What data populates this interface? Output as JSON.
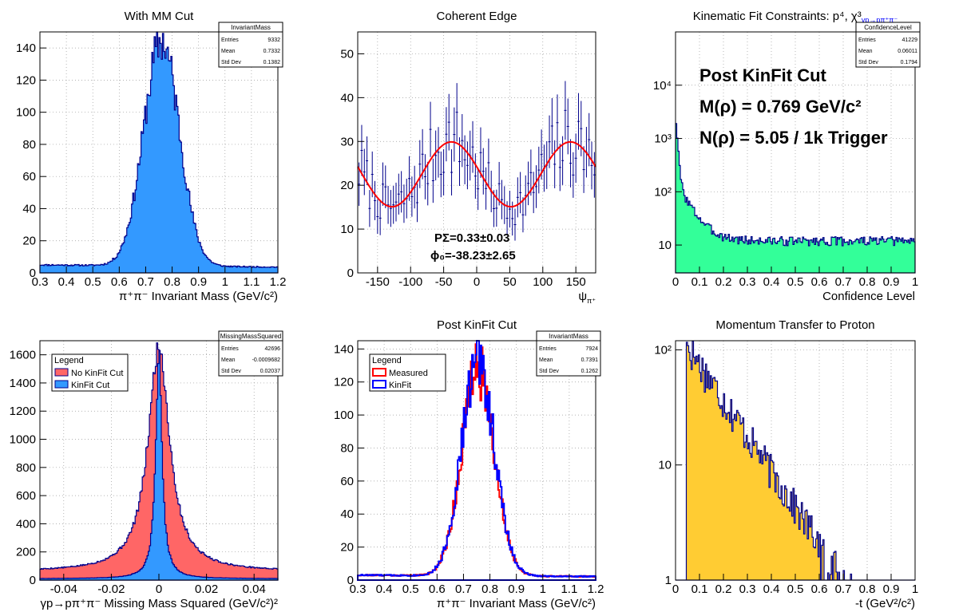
{
  "chart_data": [
    {
      "type": "bar",
      "title": "With MM Cut",
      "xlabel": "π⁺π⁻ Invariant Mass (GeV/c²)",
      "ylabel": "",
      "xlim": [
        0.3,
        1.2
      ],
      "ylim": [
        0,
        150
      ],
      "log_y": false,
      "grid": true,
      "xticks": [
        0.3,
        0.4,
        0.5,
        0.6,
        0.7,
        0.8,
        0.9,
        1,
        1.1,
        1.2
      ],
      "yticks": [
        0,
        20,
        40,
        60,
        80,
        100,
        120,
        140
      ],
      "fill_color": "#3399ff",
      "stats": {
        "name": "InvariantMass",
        "rows": [
          [
            "Entries",
            "9332"
          ],
          [
            "Mean",
            "0.7332"
          ],
          [
            "Std Dev",
            "0.1382"
          ]
        ]
      },
      "series": [
        {
          "kind": "gauss",
          "mu": 0.76,
          "sigma": 0.068,
          "amp": 140,
          "bg": 5,
          "bgSlope": 0,
          "noise": 0.1,
          "seed": 11
        }
      ]
    },
    {
      "type": "scatter",
      "title": "Coherent Edge",
      "xlabel": "ψ",
      "xlabel_sub": "π⁺",
      "ylabel": "",
      "xlim": [
        -180,
        180
      ],
      "ylim": [
        0,
        55
      ],
      "log_y": false,
      "grid": true,
      "xticks": [
        -150,
        -100,
        -50,
        0,
        50,
        100,
        150
      ],
      "yticks": [
        0,
        10,
        20,
        30,
        40,
        50
      ],
      "annotations": [
        "PΣ=0.33±0.03",
        "ϕ₀=-38.23±2.65"
      ],
      "series": [
        {
          "kind": "cos",
          "mean": 22.5,
          "amp": 7.4,
          "phase": -38.23,
          "noise": 0.28,
          "seed": 7
        }
      ]
    },
    {
      "type": "bar",
      "title": "Kinematic Fit Constraints: p⁴, χ³",
      "title_sub": "γp→pπ⁺π⁻",
      "xlabel": "Confidence Level",
      "ylabel": "",
      "xlim": [
        0,
        1
      ],
      "ylim": [
        3,
        100000
      ],
      "log_y": true,
      "grid": true,
      "xticks": [
        0,
        0.1,
        0.2,
        0.3,
        0.4,
        0.5,
        0.6,
        0.7,
        0.8,
        0.9,
        1
      ],
      "yticks": [
        10,
        100,
        1000,
        10000
      ],
      "ytick_labels": [
        "10",
        "10²",
        "10³",
        "10⁴"
      ],
      "fill_color": "#33ff99",
      "stats": {
        "name": "ConfidenceLevel",
        "rows": [
          [
            "Entries",
            "41229"
          ],
          [
            "Mean",
            "0.06011"
          ],
          [
            "Std Dev",
            "0.1794"
          ]
        ]
      },
      "annotations": [
        "Post KinFit Cut",
        "M(ρ) = 0.769 GeV/c²",
        "N(ρ) = 5.05 / 1k Trigger"
      ],
      "series": [
        {
          "kind": "conf",
          "noise": 0.2,
          "seed": 3
        }
      ]
    },
    {
      "type": "bar",
      "title": "",
      "xlabel": "γp→pπ⁺π⁻ Missing Mass Squared (GeV/c²)²",
      "ylabel": "",
      "xlim": [
        -0.05,
        0.05
      ],
      "ylim": [
        0,
        1700
      ],
      "log_y": false,
      "grid": true,
      "xticks": [
        -0.04,
        -0.02,
        0,
        0.02,
        0.04
      ],
      "yticks": [
        0,
        200,
        400,
        600,
        800,
        1000,
        1200,
        1400,
        1600
      ],
      "stats": {
        "name": "MissingMassSquared",
        "rows": [
          [
            "Entries",
            "42696"
          ],
          [
            "Mean",
            "-0.0009682"
          ],
          [
            "Std Dev",
            "0.02037"
          ]
        ]
      },
      "legend": {
        "title": "Legend",
        "entries": [
          {
            "label": "No KinFit Cut",
            "color": "#ff6666"
          },
          {
            "label": "KinFit Cut",
            "color": "#3399ff"
          }
        ]
      },
      "series": [
        {
          "name": "No KinFit Cut",
          "kind": "lorentz",
          "mu": 0,
          "gamma": 0.0055,
          "amp": 1600,
          "bg": 60,
          "noise": 0.05,
          "seed": 5,
          "fill": "#ff6666"
        },
        {
          "name": "KinFit Cut",
          "kind": "lorentz",
          "mu": 0,
          "gamma": 0.0016,
          "amp": 1600,
          "bg": 10,
          "noise": 0.05,
          "seed": 9,
          "fill": "#3399ff"
        }
      ]
    },
    {
      "type": "line",
      "title": "Post KinFit Cut",
      "xlabel": "π⁺π⁻ Invariant Mass (GeV/c²)",
      "ylabel": "",
      "xlim": [
        0.3,
        1.2
      ],
      "ylim": [
        0,
        145
      ],
      "log_y": false,
      "grid": true,
      "xticks": [
        0.3,
        0.4,
        0.5,
        0.6,
        0.7,
        0.8,
        0.9,
        1,
        1.1,
        1.2
      ],
      "yticks": [
        0,
        20,
        40,
        60,
        80,
        100,
        120,
        140
      ],
      "stats": {
        "name": "InvariantMass",
        "rows": [
          [
            "Entries",
            "7924"
          ],
          [
            "Mean",
            "0.7391"
          ],
          [
            "Std Dev",
            "0.1262"
          ]
        ]
      },
      "legend": {
        "title": "Legend",
        "entries": [
          {
            "label": "Measured",
            "color": "#ff0000"
          },
          {
            "label": "KinFit",
            "color": "#0000ff"
          }
        ]
      },
      "series": [
        {
          "name": "Measured",
          "kind": "gauss",
          "mu": 0.755,
          "sigma": 0.062,
          "amp": 125,
          "bg": 3,
          "noise": 0.14,
          "seed": 21,
          "line": "#ff0000"
        },
        {
          "name": "KinFit",
          "kind": "gauss",
          "mu": 0.755,
          "sigma": 0.062,
          "amp": 130,
          "bg": 3,
          "noise": 0.14,
          "seed": 33,
          "line": "#0000ff"
        }
      ]
    },
    {
      "type": "bar",
      "title": "Momentum Transfer to Proton",
      "xlabel": "-t (GeV²/c²)",
      "ylabel": "",
      "xlim": [
        0,
        1
      ],
      "ylim": [
        1,
        120
      ],
      "log_y": true,
      "grid": true,
      "xticks": [
        0,
        0.1,
        0.2,
        0.3,
        0.4,
        0.5,
        0.6,
        0.7,
        0.8,
        0.9,
        1
      ],
      "yticks": [
        1,
        10,
        100
      ],
      "ytick_labels": [
        "1",
        "10",
        "10²"
      ],
      "fill_color": "#ffcc33",
      "series": [
        {
          "kind": "tdist",
          "noise": 0.35,
          "seed": 17
        }
      ]
    }
  ]
}
